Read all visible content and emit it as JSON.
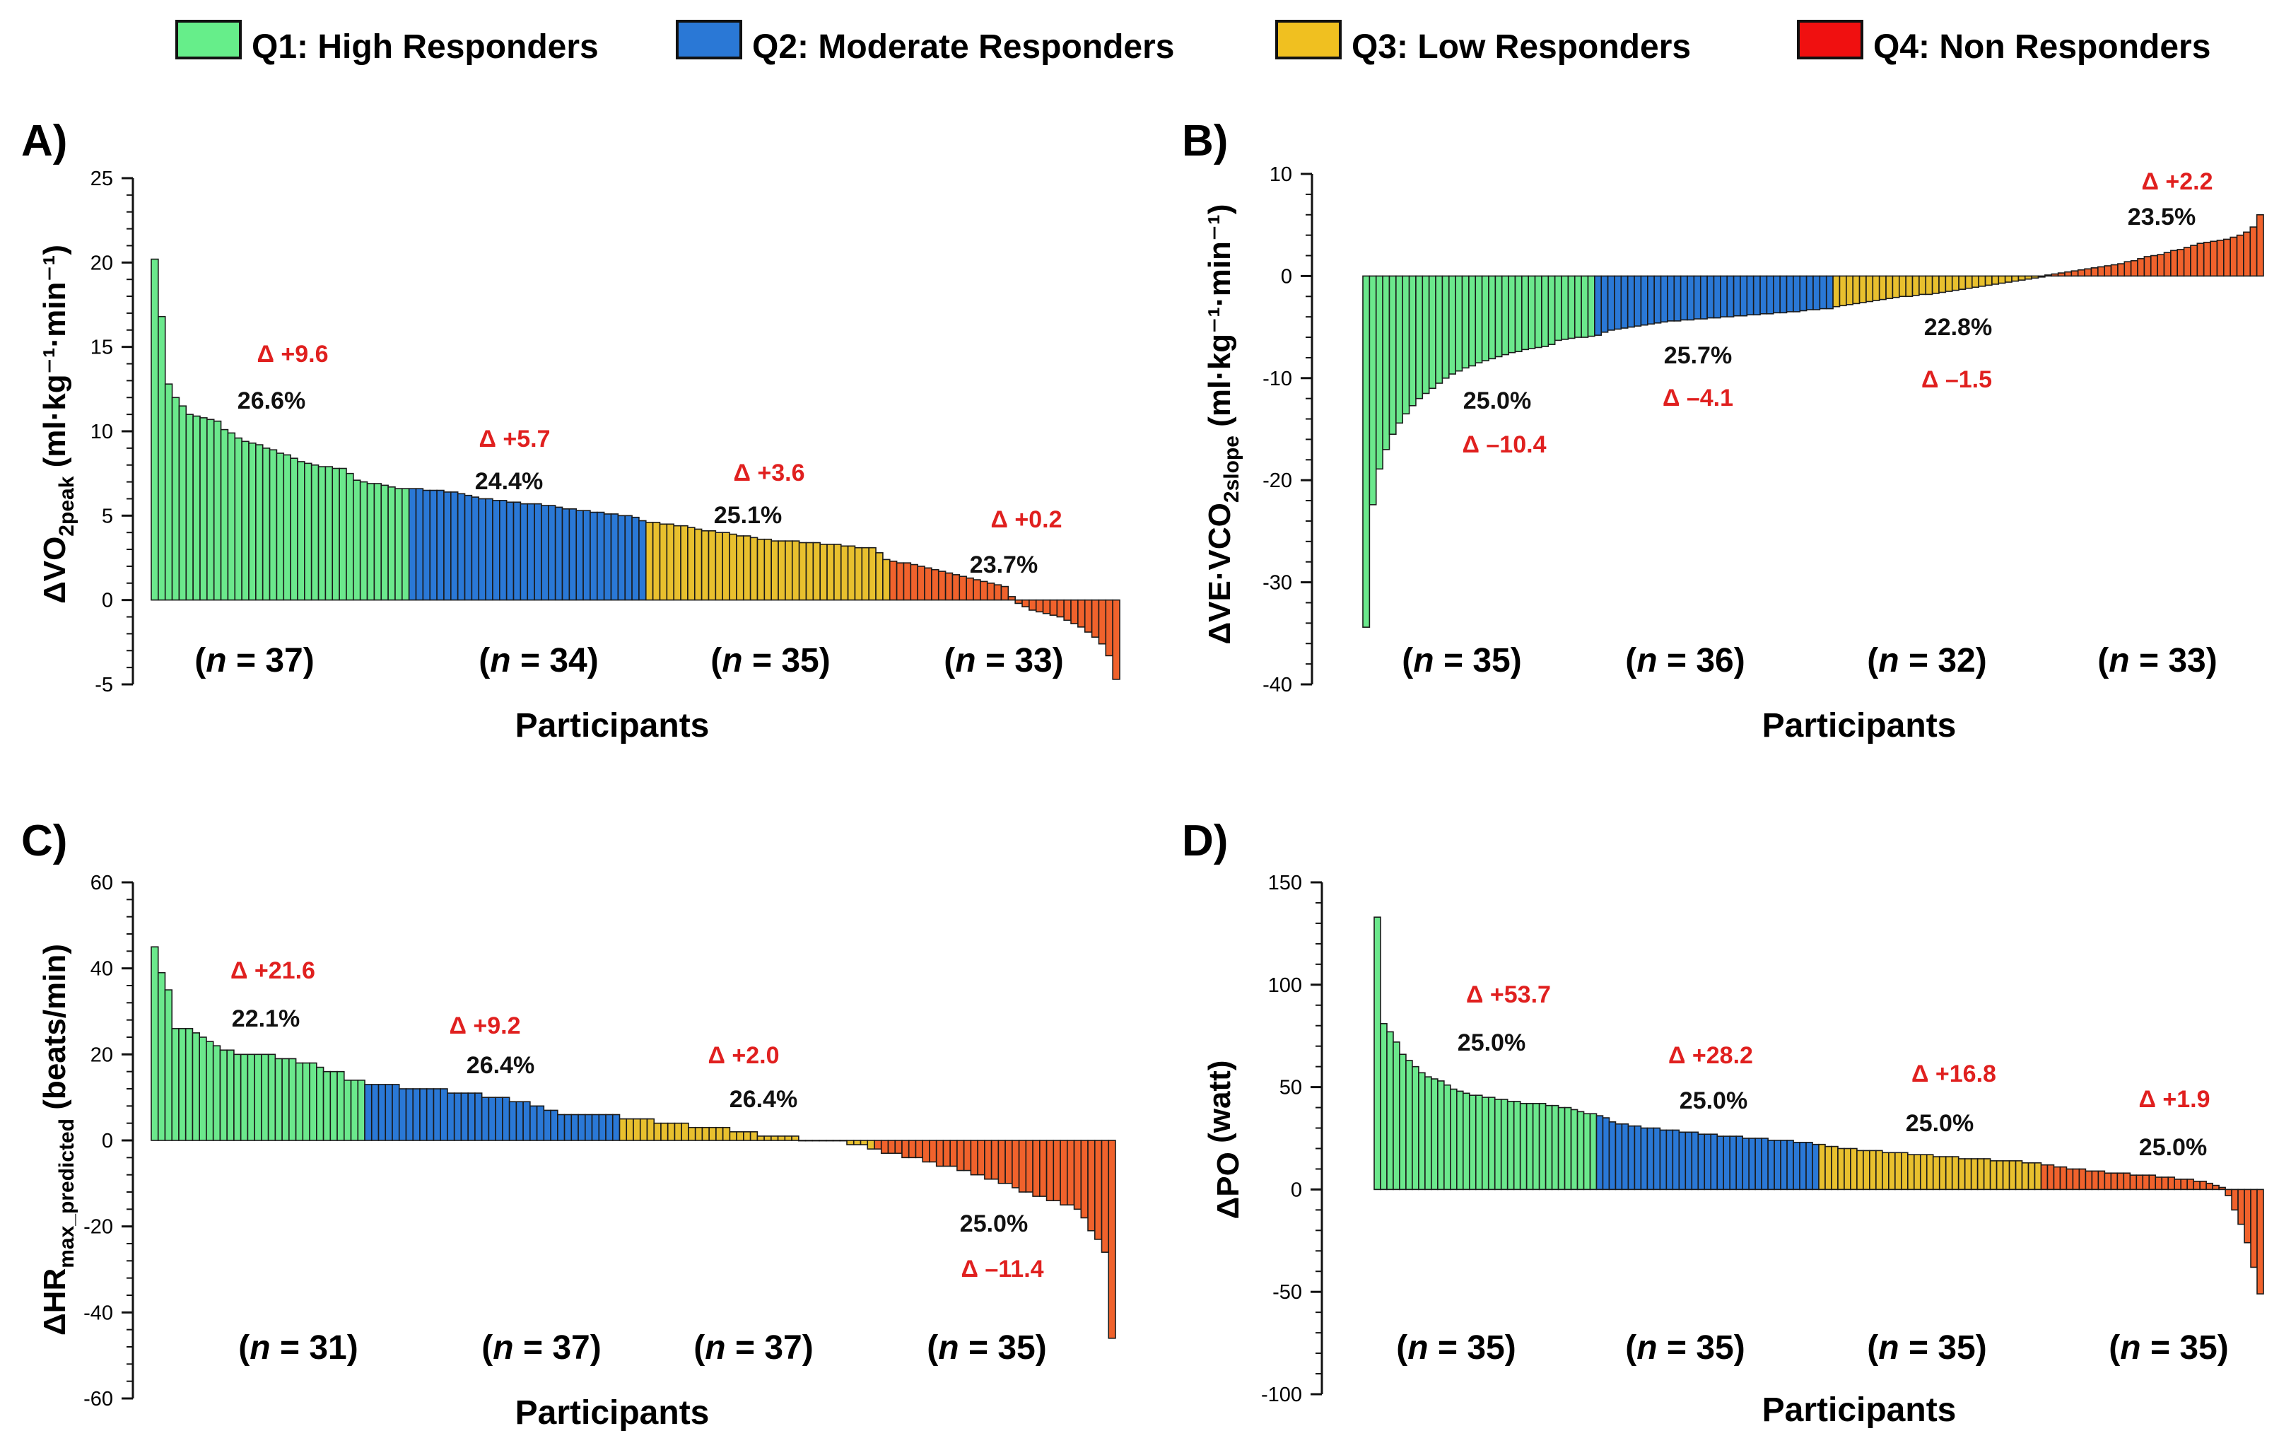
{
  "legend": [
    {
      "label": "Q1: High Responders",
      "color": "#66ee8a"
    },
    {
      "label": "Q2: Moderate Responders",
      "color": "#2a78d6"
    },
    {
      "label": "Q3: Low Responders",
      "color": "#f0c020"
    },
    {
      "label": "Q4: Non Responders",
      "color": "#f01010"
    }
  ],
  "colors": {
    "q1": "#6be88c",
    "q2": "#2a78d6",
    "q3": "#e8c02e",
    "q4": "#f0622c",
    "delta": "#e0201f"
  },
  "chart_data": [
    {
      "panel": "A)",
      "type": "bar",
      "ylabel_prefix": "ΔVO",
      "ylabel_sub": "2peak",
      "ylabel_unit": " (ml·kg⁻¹·min⁻¹)",
      "xlabel": "Participants",
      "ylim": [
        -5,
        25
      ],
      "yticks": [
        -5,
        0,
        5,
        10,
        15,
        20,
        25
      ],
      "groups": [
        {
          "n": 37,
          "n_label": "(n = 37)",
          "pct": "26.6%",
          "delta": "Δ +9.6",
          "values": [
            20.2,
            16.8,
            12.8,
            12.0,
            11.5,
            11.0,
            10.9,
            10.8,
            10.7,
            10.6,
            10.1,
            9.9,
            9.6,
            9.4,
            9.3,
            9.2,
            9.0,
            8.9,
            8.7,
            8.6,
            8.4,
            8.2,
            8.1,
            8.0,
            7.9,
            7.9,
            7.8,
            7.8,
            7.5,
            7.1,
            7.0,
            6.9,
            6.9,
            6.8,
            6.7,
            6.6,
            6.6
          ]
        },
        {
          "n": 34,
          "n_label": "(n = 34)",
          "pct": "24.4%",
          "delta": "Δ +5.7",
          "values": [
            6.6,
            6.6,
            6.5,
            6.5,
            6.5,
            6.4,
            6.4,
            6.3,
            6.2,
            6.1,
            6.0,
            6.0,
            5.9,
            5.9,
            5.8,
            5.8,
            5.7,
            5.7,
            5.7,
            5.6,
            5.6,
            5.5,
            5.4,
            5.4,
            5.3,
            5.3,
            5.2,
            5.2,
            5.1,
            5.1,
            5.0,
            5.0,
            4.9,
            4.7
          ]
        },
        {
          "n": 35,
          "n_label": "(n = 35)",
          "pct": "25.1%",
          "delta": "Δ +3.6",
          "values": [
            4.6,
            4.6,
            4.5,
            4.5,
            4.4,
            4.4,
            4.3,
            4.2,
            4.1,
            4.1,
            4.0,
            4.0,
            3.9,
            3.8,
            3.8,
            3.7,
            3.6,
            3.6,
            3.5,
            3.5,
            3.5,
            3.5,
            3.4,
            3.4,
            3.4,
            3.3,
            3.3,
            3.3,
            3.2,
            3.2,
            3.1,
            3.1,
            3.1,
            2.8,
            2.4
          ]
        },
        {
          "n": 33,
          "n_label": "(n = 33)",
          "pct": "23.7%",
          "delta": "Δ +0.2",
          "values": [
            2.3,
            2.2,
            2.2,
            2.1,
            2.0,
            1.9,
            1.8,
            1.7,
            1.6,
            1.5,
            1.4,
            1.3,
            1.2,
            1.1,
            1.0,
            0.9,
            0.8,
            0.2,
            -0.2,
            -0.4,
            -0.6,
            -0.7,
            -0.8,
            -0.9,
            -1.0,
            -1.2,
            -1.4,
            -1.6,
            -1.9,
            -2.2,
            -2.6,
            -3.3,
            -4.7
          ]
        }
      ]
    },
    {
      "panel": "B)",
      "type": "bar",
      "ylabel_prefix": "ΔVE·VCO",
      "ylabel_sub": "2slope",
      "ylabel_unit": " (ml·kg⁻¹·min⁻¹)",
      "xlabel": "Participants",
      "ylim": [
        -40,
        10
      ],
      "yticks": [
        -40,
        -30,
        -20,
        -10,
        0,
        10
      ],
      "groups": [
        {
          "n": 35,
          "n_label": "(n = 35)",
          "pct": "25.0%",
          "delta": "Δ –10.4",
          "values": [
            -34.4,
            -22.4,
            -18.9,
            -17.0,
            -15.5,
            -14.4,
            -13.5,
            -12.7,
            -12.0,
            -11.5,
            -11.0,
            -10.5,
            -10.0,
            -9.6,
            -9.3,
            -9.0,
            -8.8,
            -8.5,
            -8.3,
            -8.1,
            -7.9,
            -7.7,
            -7.5,
            -7.4,
            -7.2,
            -7.1,
            -7.0,
            -6.9,
            -6.7,
            -6.3,
            -6.2,
            -6.1,
            -6.0,
            -6.0,
            -5.9
          ]
        },
        {
          "n": 36,
          "n_label": "(n = 36)",
          "pct": "25.7%",
          "delta": "Δ –4.1",
          "values": [
            -5.8,
            -5.5,
            -5.3,
            -5.2,
            -5.1,
            -5.0,
            -4.9,
            -4.8,
            -4.7,
            -4.6,
            -4.5,
            -4.4,
            -4.4,
            -4.3,
            -4.3,
            -4.2,
            -4.2,
            -4.1,
            -4.1,
            -4.0,
            -4.0,
            -3.9,
            -3.9,
            -3.8,
            -3.8,
            -3.7,
            -3.7,
            -3.6,
            -3.6,
            -3.5,
            -3.5,
            -3.4,
            -3.3,
            -3.3,
            -3.2,
            -3.2
          ]
        },
        {
          "n": 32,
          "n_label": "(n = 32)",
          "pct": "22.8%",
          "delta": "Δ –1.5",
          "values": [
            -3.0,
            -2.9,
            -2.8,
            -2.7,
            -2.6,
            -2.5,
            -2.4,
            -2.3,
            -2.2,
            -2.1,
            -2.0,
            -2.0,
            -1.9,
            -1.8,
            -1.8,
            -1.7,
            -1.6,
            -1.5,
            -1.4,
            -1.3,
            -1.2,
            -1.1,
            -1.0,
            -0.9,
            -0.8,
            -0.7,
            -0.6,
            -0.5,
            -0.4,
            -0.3,
            -0.2,
            -0.1
          ]
        },
        {
          "n": 33,
          "n_label": "(n = 33)",
          "pct": "23.5%",
          "delta": "Δ +2.2",
          "values": [
            0.1,
            0.2,
            0.3,
            0.4,
            0.5,
            0.6,
            0.7,
            0.8,
            0.9,
            1.0,
            1.1,
            1.2,
            1.4,
            1.5,
            1.7,
            1.9,
            2.0,
            2.1,
            2.3,
            2.5,
            2.6,
            2.8,
            3.0,
            3.2,
            3.3,
            3.4,
            3.5,
            3.6,
            3.8,
            4.0,
            4.3,
            4.8,
            6.0
          ]
        }
      ]
    },
    {
      "panel": "C)",
      "type": "bar",
      "ylabel_prefix": "ΔHR",
      "ylabel_sub": "max_predicted",
      "ylabel_unit": " (beats/min)",
      "xlabel": "Participants",
      "ylim": [
        -60,
        60
      ],
      "yticks": [
        -60,
        -40,
        -20,
        0,
        20,
        40,
        60
      ],
      "groups": [
        {
          "n": 31,
          "n_label": "(n = 31)",
          "pct": "22.1%",
          "delta": "Δ +21.6",
          "values": [
            45,
            39,
            35,
            26,
            26,
            26,
            25,
            24,
            23,
            22,
            21,
            21,
            20,
            20,
            20,
            20,
            20,
            20,
            19,
            19,
            19,
            18,
            18,
            18,
            17,
            16,
            16,
            16,
            14,
            14,
            14
          ]
        },
        {
          "n": 37,
          "n_label": "(n = 37)",
          "pct": "26.4%",
          "delta": "Δ +9.2",
          "values": [
            13,
            13,
            13,
            13,
            13,
            12,
            12,
            12,
            12,
            12,
            12,
            12,
            11,
            11,
            11,
            11,
            11,
            10,
            10,
            10,
            10,
            9,
            9,
            9,
            8,
            8,
            7,
            7,
            6,
            6,
            6,
            6,
            6,
            6,
            6,
            6,
            6
          ]
        },
        {
          "n": 37,
          "n_label": "(n = 37)",
          "pct": "26.4%",
          "delta": "Δ +2.0",
          "values": [
            5,
            5,
            5,
            5,
            5,
            4,
            4,
            4,
            4,
            4,
            3,
            3,
            3,
            3,
            3,
            3,
            2,
            2,
            2,
            2,
            1,
            1,
            1,
            1,
            1,
            1,
            0,
            0,
            0,
            0,
            0,
            0,
            0,
            -1,
            -1,
            -1,
            -2
          ]
        },
        {
          "n": 35,
          "n_label": "(n = 35)",
          "pct": "25.0%",
          "delta": "Δ –11.4",
          "values": [
            -2,
            -3,
            -3,
            -3,
            -4,
            -4,
            -4,
            -5,
            -5,
            -6,
            -6,
            -6,
            -7,
            -7,
            -8,
            -8,
            -9,
            -9,
            -10,
            -10,
            -11,
            -12,
            -12,
            -13,
            -13,
            -14,
            -14,
            -15,
            -15,
            -16,
            -18,
            -21,
            -23,
            -26,
            -46
          ]
        }
      ]
    },
    {
      "panel": "D)",
      "type": "bar",
      "ylabel_prefix": "ΔPO",
      "ylabel_sub": "",
      "ylabel_unit": " (watt)",
      "xlabel": "Participants",
      "ylim": [
        -100,
        150
      ],
      "yticks": [
        -100,
        -50,
        0,
        50,
        100,
        150
      ],
      "groups": [
        {
          "n": 35,
          "n_label": "(n = 35)",
          "pct": "25.0%",
          "delta": "Δ +53.7",
          "values": [
            133,
            81,
            77,
            72,
            66,
            63,
            60,
            57,
            55,
            54,
            53,
            51,
            49,
            48,
            47,
            46,
            46,
            45,
            45,
            44,
            44,
            43,
            43,
            42,
            42,
            42,
            42,
            41,
            41,
            40,
            40,
            39,
            38,
            37,
            37
          ]
        },
        {
          "n": 35,
          "n_label": "(n = 35)",
          "pct": "25.0%",
          "delta": "Δ +28.2",
          "values": [
            36,
            35,
            33,
            32,
            32,
            31,
            31,
            30,
            30,
            30,
            29,
            29,
            29,
            28,
            28,
            28,
            27,
            27,
            27,
            26,
            26,
            26,
            26,
            25,
            25,
            25,
            25,
            24,
            24,
            24,
            24,
            23,
            23,
            23,
            22
          ]
        },
        {
          "n": 35,
          "n_label": "(n = 35)",
          "pct": "25.0%",
          "delta": "Δ +16.8",
          "values": [
            22,
            21,
            21,
            20,
            20,
            20,
            19,
            19,
            19,
            19,
            18,
            18,
            18,
            18,
            17,
            17,
            17,
            17,
            16,
            16,
            16,
            16,
            15,
            15,
            15,
            15,
            15,
            14,
            14,
            14,
            14,
            14,
            13,
            13,
            13
          ]
        },
        {
          "n": 35,
          "n_label": "(n = 35)",
          "pct": "25.0%",
          "delta": "Δ +1.9",
          "values": [
            12,
            12,
            11,
            11,
            10,
            10,
            10,
            9,
            9,
            9,
            8,
            8,
            8,
            8,
            7,
            7,
            7,
            7,
            6,
            6,
            6,
            5,
            5,
            5,
            4,
            4,
            3,
            2,
            1,
            -3,
            -10,
            -17,
            -26,
            -38,
            -51
          ]
        }
      ]
    }
  ]
}
